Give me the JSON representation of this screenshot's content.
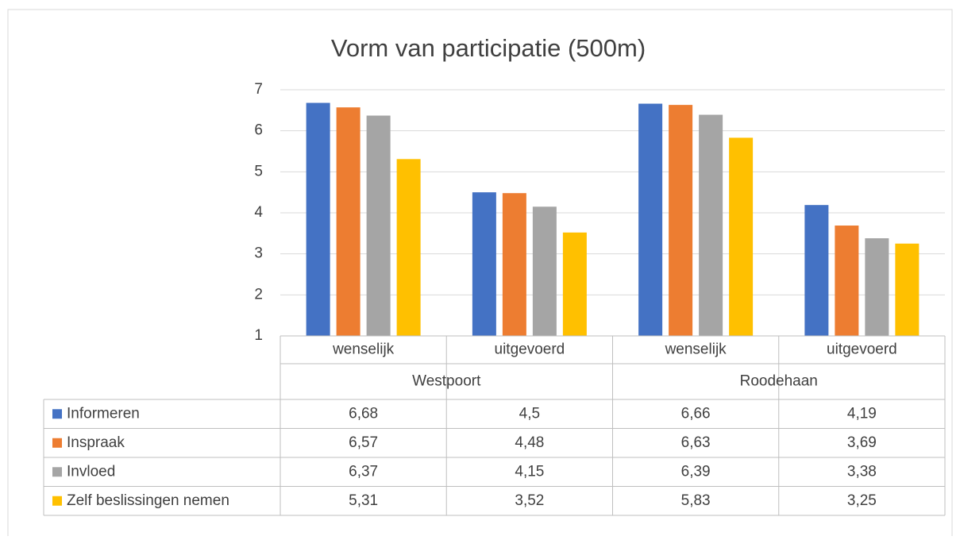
{
  "chart_data": {
    "type": "bar",
    "title": "Vorm van participatie (500m)",
    "categories": [
      "wenselijk",
      "uitgevoerd",
      "wenselijk",
      "uitgevoerd"
    ],
    "category_groups": [
      "Westpoort",
      "Roodehaan"
    ],
    "series": [
      {
        "name": "Informeren",
        "color": "#4472c4",
        "values": [
          6.68,
          4.5,
          6.66,
          4.19
        ],
        "value_labels": [
          "6,68",
          "4,5",
          "6,66",
          "4,19"
        ]
      },
      {
        "name": "Inspraak",
        "color": "#ed7d31",
        "values": [
          6.57,
          4.48,
          6.63,
          3.69
        ],
        "value_labels": [
          "6,57",
          "4,48",
          "6,63",
          "3,69"
        ]
      },
      {
        "name": "Invloed",
        "color": "#a5a5a5",
        "values": [
          6.37,
          4.15,
          6.39,
          3.38
        ],
        "value_labels": [
          "6,37",
          "4,15",
          "6,39",
          "3,38"
        ]
      },
      {
        "name": "Zelf beslissingen nemen",
        "color": "#ffc000",
        "values": [
          5.31,
          3.52,
          5.83,
          3.25
        ],
        "value_labels": [
          "5,31",
          "3,52",
          "5,83",
          "3,25"
        ]
      }
    ],
    "ylim": [
      1,
      7
    ],
    "yticks": [
      1,
      2,
      3,
      4,
      5,
      6,
      7
    ],
    "grid": true,
    "data_table": true
  }
}
